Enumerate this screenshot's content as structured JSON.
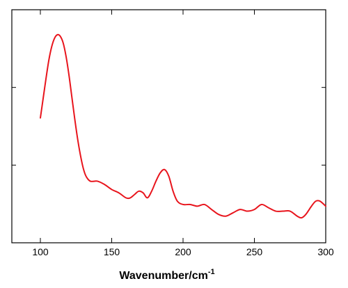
{
  "chart_data": {
    "type": "line",
    "title": "",
    "xlabel": "Wavenumber/cm",
    "xlabel_superscript": "-1",
    "ylabel": "",
    "xlim": [
      80,
      300
    ],
    "x_ticks": [
      100,
      150,
      200,
      250,
      300
    ],
    "y_ticks_labeled": false,
    "y_tick_count": 2,
    "grid": false,
    "legend": "none",
    "series": [
      {
        "color": "#e8141c",
        "x": [
          100,
          102,
          104,
          106,
          108,
          110,
          112,
          114,
          116,
          118,
          120,
          122,
          124,
          126,
          128,
          130,
          132,
          135,
          140,
          145,
          150,
          155,
          160,
          163,
          166,
          169,
          172,
          175,
          178,
          181,
          184,
          187,
          190,
          193,
          196,
          200,
          205,
          210,
          215,
          220,
          225,
          230,
          235,
          240,
          245,
          250,
          255,
          260,
          265,
          270,
          275,
          280,
          283,
          286,
          290,
          293,
          296,
          300
        ],
        "y": [
          0.6,
          0.72,
          0.84,
          0.95,
          1.03,
          1.08,
          1.1,
          1.09,
          1.05,
          0.97,
          0.86,
          0.73,
          0.6,
          0.48,
          0.38,
          0.3,
          0.25,
          0.22,
          0.22,
          0.2,
          0.17,
          0.15,
          0.12,
          0.12,
          0.14,
          0.16,
          0.15,
          0.12,
          0.16,
          0.22,
          0.27,
          0.29,
          0.25,
          0.16,
          0.1,
          0.08,
          0.08,
          0.07,
          0.08,
          0.05,
          0.02,
          0.01,
          0.03,
          0.05,
          0.04,
          0.05,
          0.08,
          0.06,
          0.04,
          0.04,
          0.04,
          0.01,
          0.0,
          0.02,
          0.07,
          0.1,
          0.1,
          0.07
        ]
      }
    ]
  }
}
